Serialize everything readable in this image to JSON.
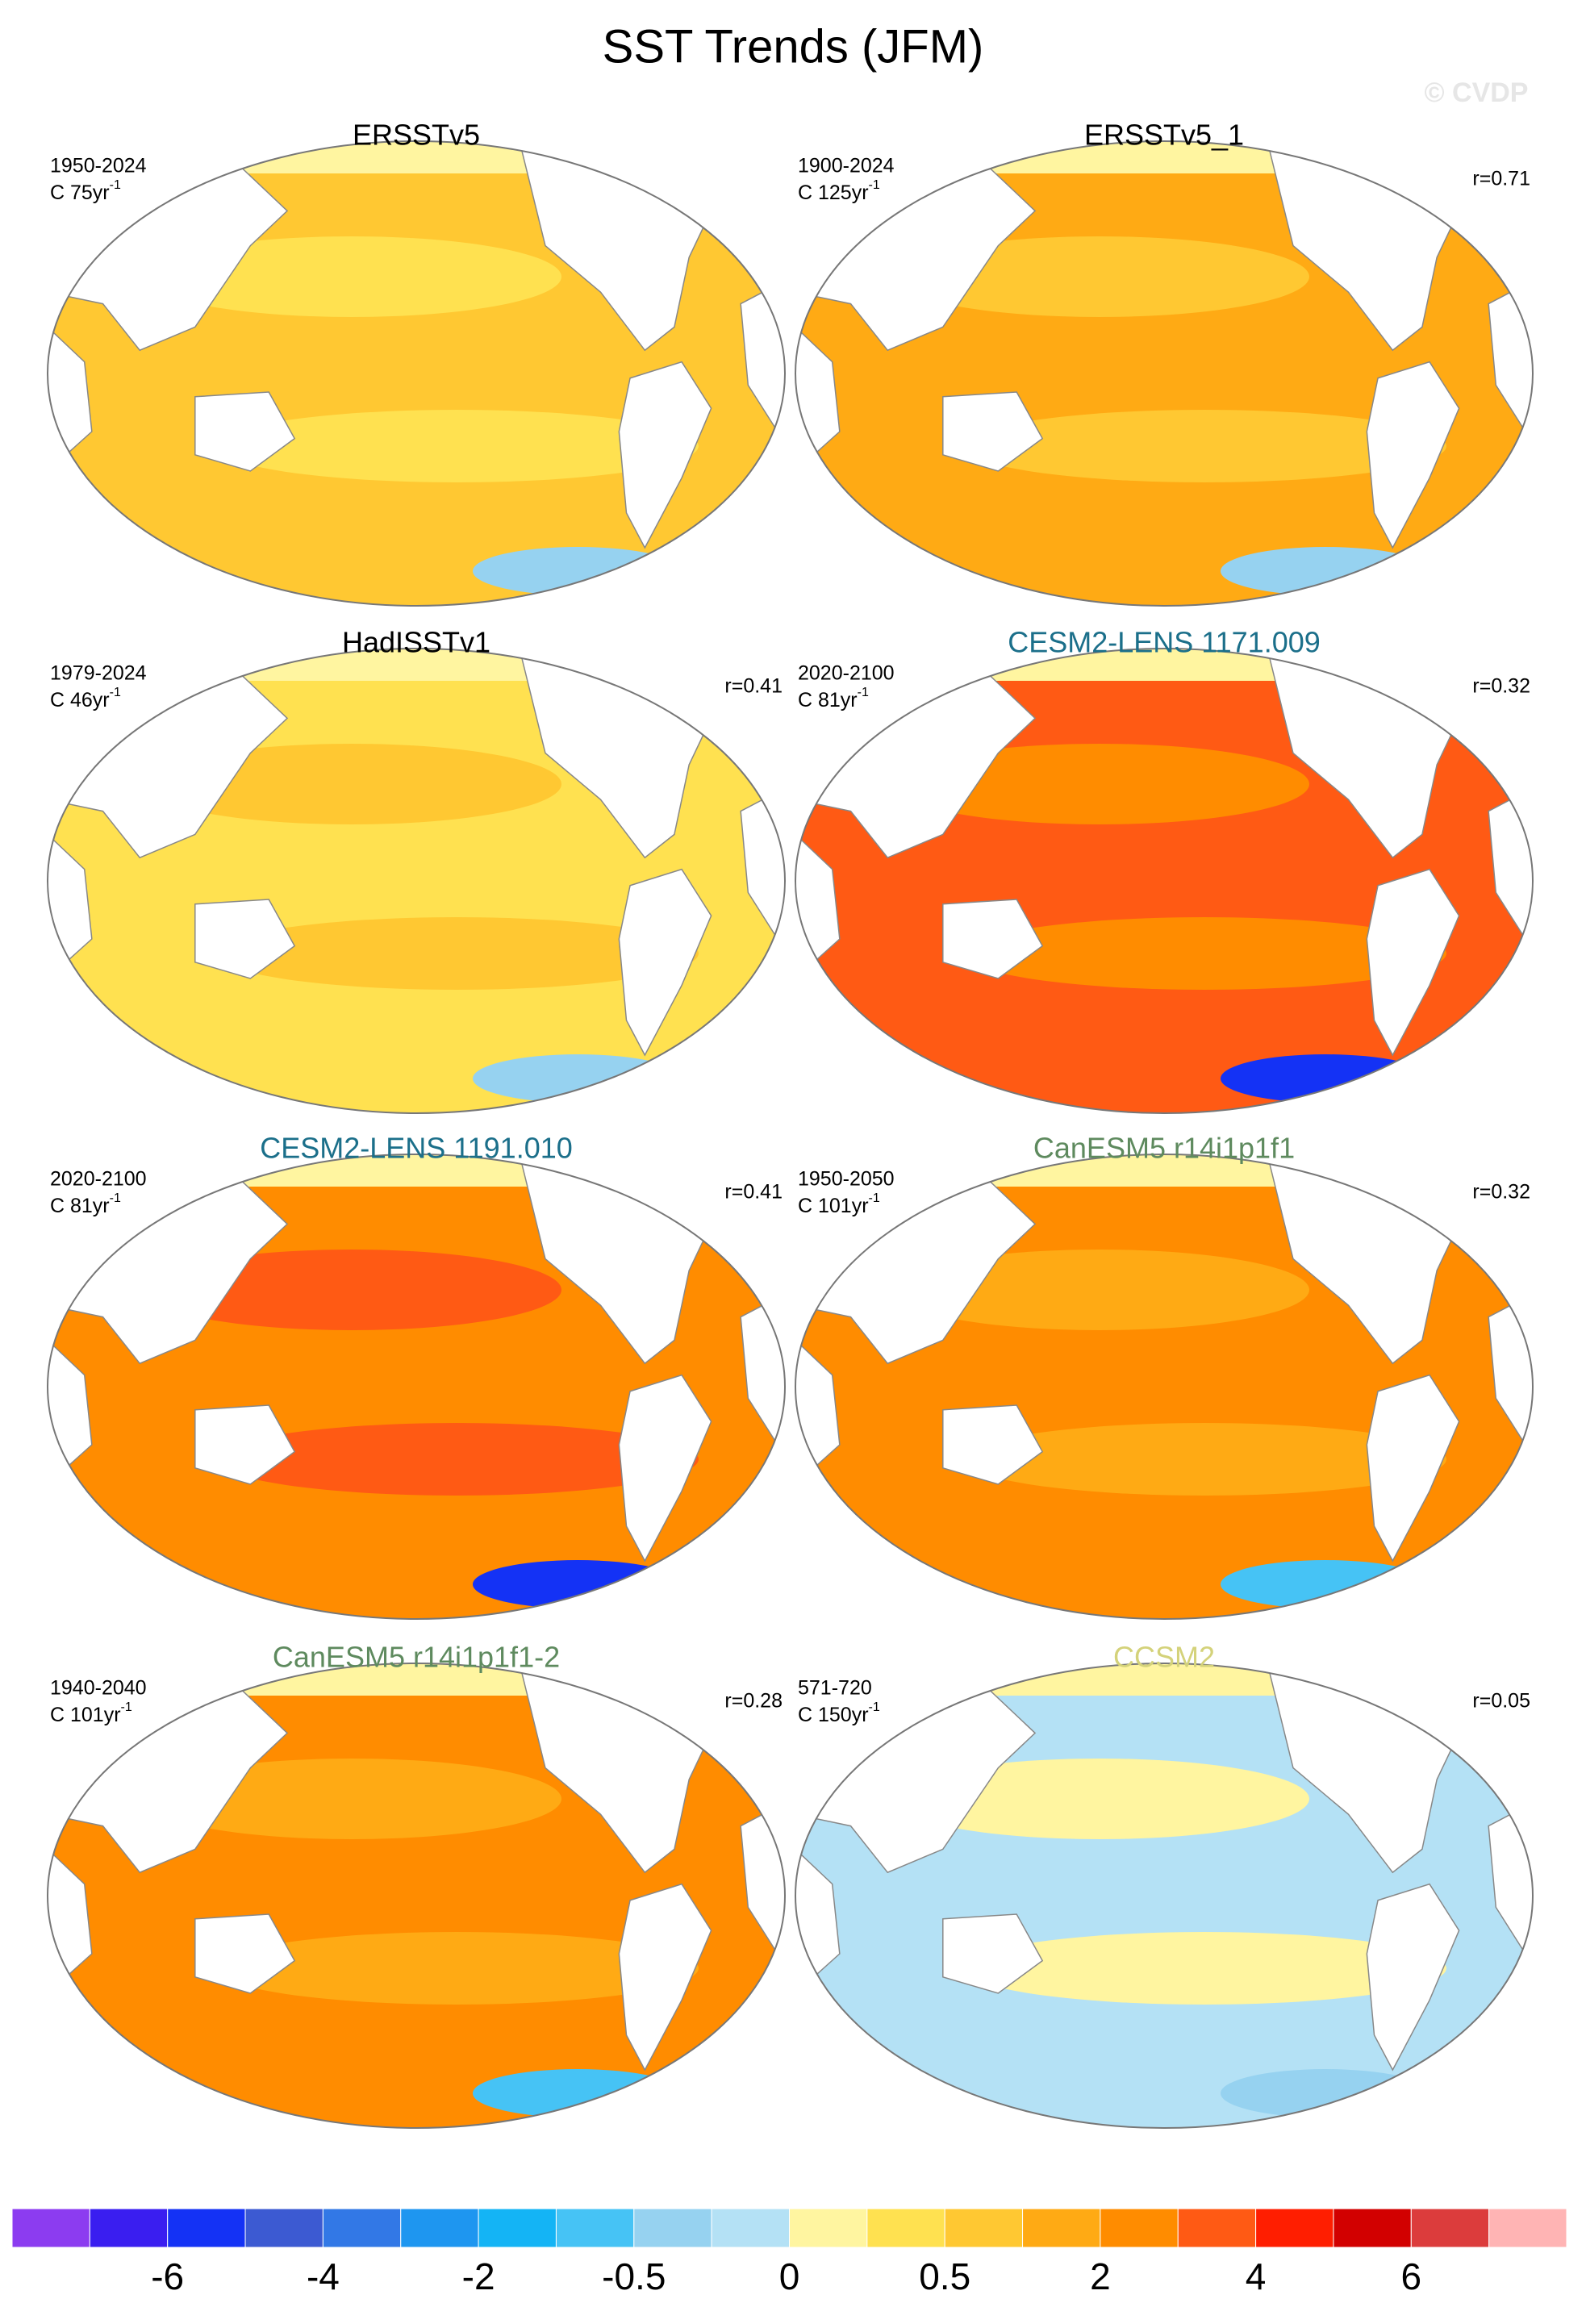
{
  "title": "SST Trends (JFM)",
  "watermark": "© CVDP",
  "panels": [
    {
      "name": "ERSSTv5",
      "name_color": "#000000",
      "period": "1950-2024",
      "unit": "C 75yr",
      "unit_exp": "-1"
    },
    {
      "name": "ERSSTv5_1",
      "name_color": "#000000",
      "period": "1900-2024",
      "unit": "C 125yr",
      "unit_exp": "-1",
      "r": "r=0.71"
    },
    {
      "name": "HadISSTv1",
      "name_color": "#000000",
      "period": "1979-2024",
      "unit": "C 46yr",
      "unit_exp": "-1",
      "r": "r=0.41"
    },
    {
      "name": "CESM2-LENS 1171.009",
      "name_color": "#1b6f8a",
      "period": "2020-2100",
      "unit": "C 81yr",
      "unit_exp": "-1",
      "r": "r=0.32"
    },
    {
      "name": "CESM2-LENS 1191.010",
      "name_color": "#1b6f8a",
      "period": "2020-2100",
      "unit": "C 81yr",
      "unit_exp": "-1",
      "r": "r=0.41"
    },
    {
      "name": "CanESM5 r14i1p1f1",
      "name_color": "#5e8a5e",
      "period": "1950-2050",
      "unit": "C 101yr",
      "unit_exp": "-1",
      "r": "r=0.32"
    },
    {
      "name": "CanESM5 r14i1p1f1-2",
      "name_color": "#5e8a5e",
      "period": "1940-2040",
      "unit": "C 101yr",
      "unit_exp": "-1",
      "r": "r=0.28"
    },
    {
      "name": "CCSM2",
      "name_color": "#d4d27a",
      "period": "571-720",
      "unit": "C 150yr",
      "unit_exp": "-1",
      "r": "r=0.05"
    }
  ],
  "colorbar": {
    "colors": [
      "#8c3cf0",
      "#3a1ef0",
      "#1432f5",
      "#3c5ad2",
      "#3278e6",
      "#1e96f0",
      "#14b4f5",
      "#46c3f5",
      "#96d2f0",
      "#b4e1f5",
      "#fff5a0",
      "#ffe150",
      "#ffc832",
      "#ffaa14",
      "#ff8c00",
      "#ff5a14",
      "#ff1e00",
      "#d20000",
      "#dc3c3c",
      "#ffb4b4"
    ],
    "ticks": [
      -6,
      -4,
      -2,
      -0.5,
      0,
      0.5,
      2,
      4,
      6
    ]
  }
}
